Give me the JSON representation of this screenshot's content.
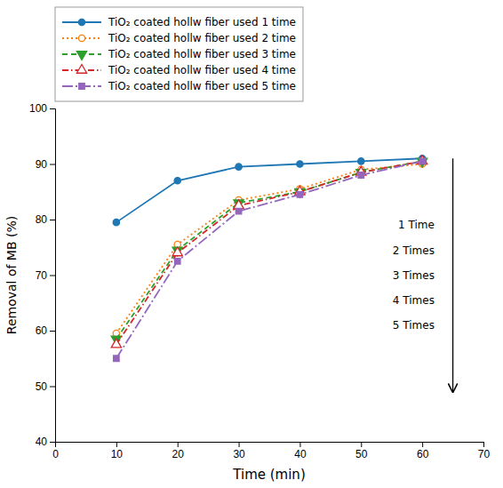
{
  "chart_data": {
    "type": "line",
    "x": [
      10,
      20,
      30,
      40,
      50,
      60
    ],
    "series": [
      {
        "name": "TiO₂ coated hollw fiber used 1 time",
        "values": [
          79.5,
          87.0,
          89.5,
          90.0,
          90.5,
          91.0
        ],
        "marker": "circle",
        "line_style": "solid"
      },
      {
        "name": "TiO₂ coated hollw fiber used 2 time",
        "values": [
          59.5,
          75.5,
          83.5,
          85.5,
          89.0,
          90.0
        ],
        "marker": "circle-open",
        "line_style": "dotted"
      },
      {
        "name": "TiO₂ coated hollw fiber used 3 time",
        "values": [
          58.5,
          74.5,
          83.0,
          85.0,
          88.5,
          90.5
        ],
        "marker": "triangle-down",
        "line_style": "dashed"
      },
      {
        "name": "TiO₂ coated hollw fiber used 4 time",
        "values": [
          57.5,
          74.0,
          82.5,
          85.0,
          88.5,
          90.5
        ],
        "marker": "triangle-up-open",
        "line_style": "dashdot"
      },
      {
        "name": "TiO₂ coated hollw fiber used 5 time",
        "values": [
          55.0,
          72.5,
          81.5,
          84.5,
          88.0,
          90.5
        ],
        "marker": "square",
        "line_style": "longdashdot"
      }
    ],
    "xlabel": "Time (min)",
    "ylabel": "Removal of MB (%)",
    "xlim": [
      0,
      70
    ],
    "ylim": [
      40,
      100
    ],
    "xticks": [
      0,
      10,
      20,
      30,
      40,
      50,
      60,
      70
    ],
    "yticks": [
      40,
      50,
      60,
      70,
      80,
      90,
      100
    ],
    "arrow": {
      "x": 65,
      "y_start": 91,
      "y_end": 49
    },
    "annotations": [
      {
        "text": "1 Time",
        "x": 62,
        "y": 79
      },
      {
        "text": "2 Times",
        "x": 62,
        "y": 74.5
      },
      {
        "text": "3 Times",
        "x": 62,
        "y": 70
      },
      {
        "text": "4 Times",
        "x": 62,
        "y": 65.5
      },
      {
        "text": "5 Times",
        "x": 62,
        "y": 61
      }
    ],
    "legend": "top",
    "grid": false
  }
}
